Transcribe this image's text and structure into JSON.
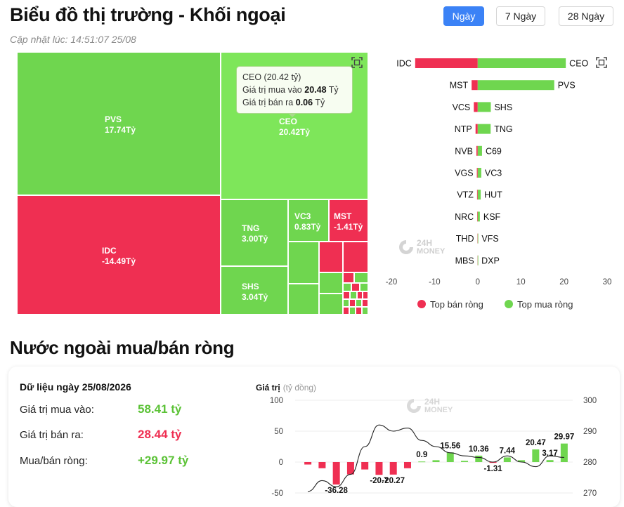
{
  "header": {
    "title": "Biểu đồ thị trường - Khối ngoại",
    "updated": "Cập nhật lúc: 14:51:07 25/08",
    "tabs": [
      {
        "label": "Ngày",
        "active": true
      },
      {
        "label": "7 Ngày",
        "active": false
      },
      {
        "label": "28 Ngày",
        "active": false
      }
    ]
  },
  "colors": {
    "buy": "#6fd64f",
    "sell": "#ef2f52",
    "buy_light": "#7ee65a",
    "accent": "#3b82f6"
  },
  "icons": {
    "expand": "expand-icon"
  },
  "chart_data": [
    {
      "type": "treemap",
      "tiles": [
        {
          "code": "PVS",
          "value": "17.74Tỷ",
          "side": "buy"
        },
        {
          "code": "CEO",
          "value": "20.42Tỷ",
          "side": "buy"
        },
        {
          "code": "IDC",
          "value": "-14.49Tỷ",
          "side": "sell"
        },
        {
          "code": "TNG",
          "value": "3.00Tỷ",
          "side": "buy"
        },
        {
          "code": "SHS",
          "value": "3.04Tỷ",
          "side": "buy"
        },
        {
          "code": "VC3",
          "value": "0.83Tỷ",
          "side": "buy"
        },
        {
          "code": "MST",
          "value": "-1.41Tỷ",
          "side": "sell"
        }
      ],
      "tooltip": {
        "title": "CEO (20.42 tỷ)",
        "buy_label": "Giá trị mua vào",
        "buy_value": "20.48",
        "buy_unit": "Tỷ",
        "sell_label": "Giá trị bán ra",
        "sell_value": "0.06",
        "sell_unit": "Tỷ"
      }
    },
    {
      "type": "bar",
      "orientation": "horizontal",
      "rows": [
        {
          "sell": "IDC",
          "sell_value": -14.49,
          "buy": "CEO",
          "buy_value": 20.42
        },
        {
          "sell": "MST",
          "sell_value": -1.41,
          "buy": "PVS",
          "buy_value": 17.74
        },
        {
          "sell": "VCS",
          "sell_value": -0.9,
          "buy": "SHS",
          "buy_value": 3.04
        },
        {
          "sell": "NTP",
          "sell_value": -0.5,
          "buy": "TNG",
          "buy_value": 3.0
        },
        {
          "sell": "NVB",
          "sell_value": -0.3,
          "buy": "C69",
          "buy_value": 1.0
        },
        {
          "sell": "VGS",
          "sell_value": -0.2,
          "buy": "VC3",
          "buy_value": 0.83
        },
        {
          "sell": "VTZ",
          "sell_value": -0.15,
          "buy": "HUT",
          "buy_value": 0.7
        },
        {
          "sell": "NRC",
          "sell_value": -0.1,
          "buy": "KSF",
          "buy_value": 0.5
        },
        {
          "sell": "THD",
          "sell_value": -0.05,
          "buy": "VFS",
          "buy_value": 0.1
        },
        {
          "sell": "MBS",
          "sell_value": -0.02,
          "buy": "DXP",
          "buy_value": 0.05
        }
      ],
      "xticks": [
        -20,
        -10,
        0,
        10,
        20,
        30
      ],
      "xlim": [
        -20,
        30
      ],
      "legend": [
        "Top bán ròng",
        "Top mua ròng"
      ],
      "legend_position": "bottom",
      "watermark": [
        "24H",
        "MONEY"
      ]
    },
    {
      "type": "bar+line",
      "ylabel": "Giá trị",
      "ylabel_unit": "(tỷ đồng)",
      "yticks_left": [
        100,
        50,
        0,
        -50
      ],
      "ylim_left": [
        -50,
        100
      ],
      "yticks_right": [
        300,
        290,
        280,
        270
      ],
      "ylim_right": [
        270,
        300
      ],
      "bars": [
        -4,
        -10,
        -36.28,
        -20,
        -12,
        -20.7,
        -20.27,
        -10,
        0.9,
        3,
        15.56,
        2,
        10.36,
        -1.31,
        7.44,
        3,
        20.47,
        3.17,
        29.97
      ],
      "bar_labels": [
        {
          "index": 2,
          "text": "-36.28"
        },
        {
          "index": 5,
          "text": "-20.7"
        },
        {
          "index": 6,
          "text": "-20.27"
        },
        {
          "index": 8,
          "text": "0.9"
        },
        {
          "index": 10,
          "text": "15.56"
        },
        {
          "index": 12,
          "text": "10.36"
        },
        {
          "index": 13,
          "text": "-1.31"
        },
        {
          "index": 14,
          "text": "7.44"
        },
        {
          "index": 16,
          "text": "20.47"
        },
        {
          "index": 17,
          "text": "3.17"
        },
        {
          "index": 18,
          "text": "29.97"
        }
      ],
      "line": [
        270.5,
        274,
        272,
        276,
        285,
        292,
        290,
        291,
        287,
        285,
        283,
        282,
        281.5,
        280,
        282,
        280,
        278.5,
        282,
        281.5
      ],
      "watermark": [
        "24H",
        "MONEY"
      ]
    }
  ],
  "net_section": {
    "title": "Nước ngoài mua/bán ròng",
    "date_label": "Dữ liệu ngày 25/08/2026",
    "rows": [
      {
        "label": "Giá trị mua vào:",
        "value": "58.41 tỷ",
        "color": "#5bc236"
      },
      {
        "label": "Giá trị bán ra:",
        "value": "28.44 tỷ",
        "color": "#ef2f52"
      },
      {
        "label": "Mua/bán ròng:",
        "value": "+29.97 tỷ",
        "color": "#5bc236"
      }
    ]
  }
}
